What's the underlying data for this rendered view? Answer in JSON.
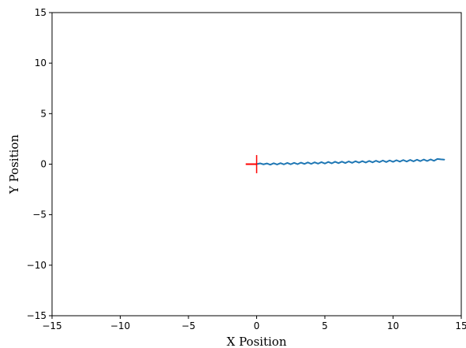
{
  "chart_data": {
    "type": "line",
    "title": "",
    "xlabel": "X Position",
    "ylabel": "Y Position",
    "xlim": [
      -15,
      15
    ],
    "ylim": [
      -15,
      15
    ],
    "xticks": [
      -15,
      -10,
      -5,
      0,
      5,
      10,
      15
    ],
    "yticks": [
      -15,
      -10,
      -5,
      0,
      5,
      10,
      15
    ],
    "xtick_labels": [
      "−15",
      "−10",
      "−5",
      "0",
      "5",
      "10",
      "15"
    ],
    "ytick_labels": [
      "−15",
      "−10",
      "−5",
      "0",
      "5",
      "10",
      "15"
    ],
    "grid": false,
    "series": [
      {
        "color": "#1f77b4",
        "x": [
          0.0,
          0.25,
          0.5,
          0.75,
          1.0,
          1.25,
          1.5,
          1.75,
          2.0,
          2.25,
          2.5,
          2.75,
          3.0,
          3.25,
          3.5,
          3.75,
          4.0,
          4.25,
          4.5,
          4.75,
          5.0,
          5.25,
          5.5,
          5.75,
          6.0,
          6.25,
          6.5,
          6.75,
          7.0,
          7.25,
          7.5,
          7.75,
          8.0,
          8.25,
          8.5,
          8.75,
          9.0,
          9.25,
          9.5,
          9.75,
          10.0,
          10.25,
          10.5,
          10.75,
          11.0,
          11.25,
          11.5,
          11.75,
          12.0,
          12.25,
          12.5,
          12.75,
          13.0,
          13.25,
          13.5,
          13.75
        ],
        "y": [
          0.0,
          0.08,
          -0.02,
          0.07,
          -0.05,
          0.09,
          -0.03,
          0.1,
          -0.02,
          0.12,
          -0.01,
          0.13,
          0.0,
          0.15,
          0.02,
          0.17,
          0.03,
          0.18,
          0.05,
          0.2,
          0.06,
          0.22,
          0.08,
          0.24,
          0.1,
          0.25,
          0.11,
          0.27,
          0.13,
          0.29,
          0.15,
          0.3,
          0.16,
          0.32,
          0.18,
          0.34,
          0.2,
          0.36,
          0.21,
          0.37,
          0.23,
          0.39,
          0.25,
          0.41,
          0.26,
          0.42,
          0.28,
          0.44,
          0.3,
          0.46,
          0.31,
          0.47,
          0.33,
          0.52,
          0.48,
          0.45
        ]
      }
    ],
    "marker": {
      "color": "#ff0000",
      "horizontal": {
        "x": [
          -0.8,
          0.0
        ],
        "y": [
          0,
          0
        ]
      },
      "vertical": {
        "x": [
          0,
          0
        ],
        "y": [
          -0.9,
          0.9
        ]
      }
    }
  }
}
